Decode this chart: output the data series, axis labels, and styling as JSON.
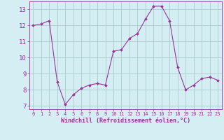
{
  "x": [
    0,
    1,
    2,
    3,
    4,
    5,
    6,
    7,
    8,
    9,
    10,
    11,
    12,
    13,
    14,
    15,
    16,
    17,
    18,
    19,
    20,
    21,
    22,
    23
  ],
  "y": [
    12.0,
    12.1,
    12.3,
    8.5,
    7.1,
    7.7,
    8.1,
    8.3,
    8.4,
    8.3,
    10.4,
    10.5,
    11.2,
    11.5,
    12.4,
    13.2,
    13.2,
    12.3,
    9.4,
    8.0,
    8.3,
    8.7,
    8.8,
    8.6
  ],
  "line_color": "#993399",
  "marker": "D",
  "marker_size": 2.0,
  "bg_color": "#d4eef4",
  "grid_color": "#aacccc",
  "xlabel": "Windchill (Refroidissement éolien,°C)",
  "xlabel_color": "#993399",
  "tick_color": "#993399",
  "spine_color": "#993399",
  "ylim": [
    6.8,
    13.5
  ],
  "xlim": [
    -0.5,
    23.5
  ],
  "yticks": [
    7,
    8,
    9,
    10,
    11,
    12,
    13
  ],
  "xticks": [
    0,
    1,
    2,
    3,
    4,
    5,
    6,
    7,
    8,
    9,
    10,
    11,
    12,
    13,
    14,
    15,
    16,
    17,
    18,
    19,
    20,
    21,
    22,
    23
  ],
  "xlabel_fontsize": 6.0,
  "xlabel_fontweight": "bold",
  "xtick_fontsize": 5.0,
  "ytick_fontsize": 6.5
}
